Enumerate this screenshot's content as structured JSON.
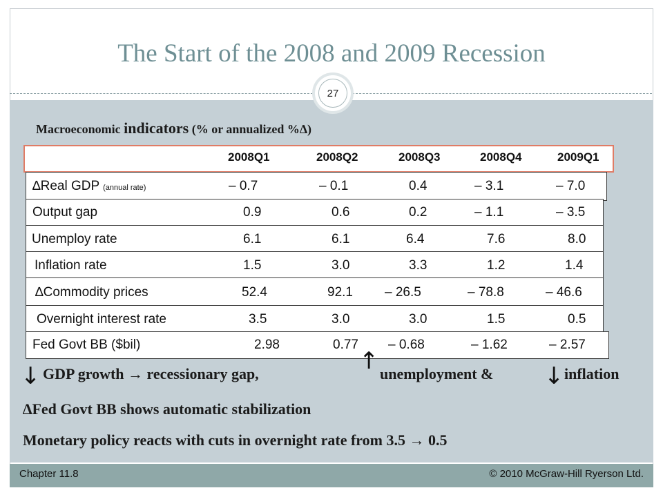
{
  "slide": {
    "title": "The Start of the 2008 and 2009 Recession",
    "page_number": "27",
    "subtitle_pre": "Macroeconomic ",
    "subtitle_big": "indicators",
    "subtitle_post": " (% or annualized %∆)"
  },
  "table": {
    "columns": [
      "2008Q1",
      "2008Q2",
      "2008Q3",
      "2008Q4",
      "2009Q1"
    ],
    "rows": [
      {
        "label": "∆Real GDP ",
        "label_small": "(annual rate)",
        "values": [
          "– 0.7",
          "– 0.1",
          "0.4",
          "– 3.1",
          "– 7.0"
        ]
      },
      {
        "label": "Output gap",
        "values": [
          "0.9",
          "0.6",
          "0.2",
          "– 1.1",
          "– 3.5"
        ]
      },
      {
        "label": "Unemploy rate",
        "values": [
          "6.1",
          "6.1",
          "6.4",
          "7.6",
          "8.0"
        ]
      },
      {
        "label": "Inflation rate",
        "values": [
          "1.5",
          "3.0",
          "3.3",
          "1.2",
          "1.4"
        ]
      },
      {
        "label": "∆Commodity prices",
        "values": [
          "52.4",
          "92.1",
          "– 26.5",
          "– 78.8",
          "– 46.6"
        ]
      },
      {
        "label": "Overnight interest rate",
        "values": [
          "3.5",
          "3.0",
          "3.0",
          "1.5",
          "0.5"
        ]
      },
      {
        "label": "Fed Govt BB ($bil)",
        "values": [
          "2.98",
          "0.77",
          "– 0.68",
          "– 1.62",
          "– 2.57"
        ]
      }
    ]
  },
  "notes": {
    "gdp": "GDP growth → recessionary gap,",
    "unemployment": "unemployment &",
    "inflation": "inflation",
    "fed": "∆Fed Govt BB shows automatic stabilization",
    "monetary": "Monetary policy reacts with cuts in overnight rate from 3.5 → 0.5"
  },
  "arrows": {
    "down": "↓",
    "up": "↑"
  },
  "footer": {
    "left": "Chapter 11.8",
    "right": "© 2010 McGraw-Hill Ryerson Ltd."
  }
}
